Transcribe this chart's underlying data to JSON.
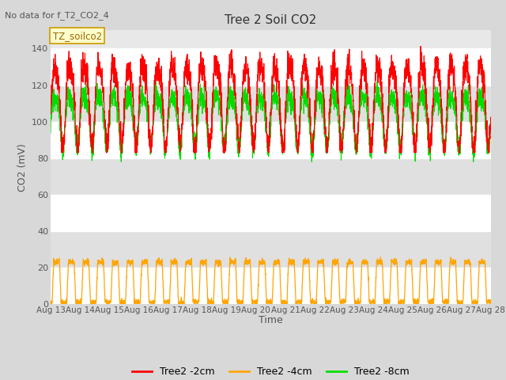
{
  "title": "Tree 2 Soil CO2",
  "no_data_label": "No data for f_T2_CO2_4",
  "tz_label": "TZ_soilco2",
  "ylabel": "CO2 (mV)",
  "xlabel": "Time",
  "xlim_days": [
    13,
    28
  ],
  "ylim": [
    0,
    150
  ],
  "yticks": [
    0,
    20,
    40,
    60,
    80,
    100,
    120,
    140
  ],
  "xtick_labels": [
    "Aug 13",
    "Aug 14",
    "Aug 15",
    "Aug 16",
    "Aug 17",
    "Aug 18",
    "Aug 19",
    "Aug 20",
    "Aug 21",
    "Aug 22",
    "Aug 23",
    "Aug 24",
    "Aug 25",
    "Aug 26",
    "Aug 27",
    "Aug 28"
  ],
  "color_red": "#FF0000",
  "color_orange": "#FFA500",
  "color_green": "#00DD00",
  "legend_labels": [
    "Tree2 -2cm",
    "Tree2 -4cm",
    "Tree2 -8cm"
  ],
  "bg_color": "#D8D8D8",
  "plot_bg_color": "#E8E8E8",
  "band_colors": [
    "#FFFFFF",
    "#E0E0E0"
  ],
  "seed": 42,
  "n_points": 3000
}
